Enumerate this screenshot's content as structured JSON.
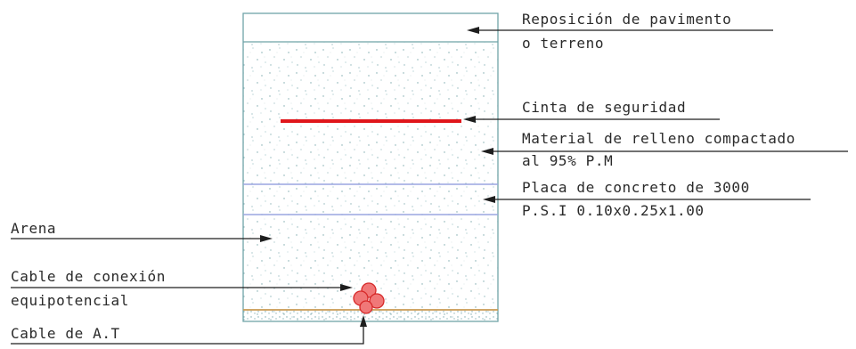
{
  "diagram": {
    "labels": {
      "pavement_line1": "Reposición de pavimento",
      "pavement_line2": "o terreno",
      "safety_tape": "Cinta de seguridad",
      "fill_line1": "Material de relleno compactado",
      "fill_line2": "al 95% P.M",
      "slab_line1": "Placa de concreto de 3000",
      "slab_line2": "P.S.I 0.10x0.25x1.00",
      "sand": "Arena",
      "bond_cable_line1": "Cable de conexión",
      "bond_cable_line2": "equipotencial",
      "ht_cable": "Cable de A.T"
    },
    "colors": {
      "outline": "#6fa3a8",
      "slab_line": "#9aa6e0",
      "tape": "#e0161b",
      "cable_fill": "#f07878",
      "cable_stroke": "#d62828",
      "bed_line": "#c99a52",
      "stipple": "#7aa8ad"
    }
  }
}
